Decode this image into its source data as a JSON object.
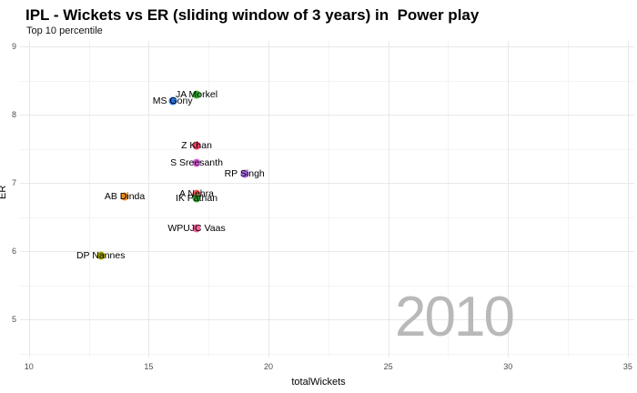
{
  "header": {
    "title": "IPL - Wickets vs ER (sliding window of 3 years) in  Power play",
    "subtitle": "Top 10 percentile"
  },
  "watermark": "2010",
  "chart_data": {
    "type": "scatter",
    "title": "IPL - Wickets vs ER (sliding window of 3 years) in  Power play",
    "subtitle": "Top 10 percentile",
    "xlabel": "totalWickets",
    "ylabel": "ER",
    "xlim": [
      9.63,
      35.27
    ],
    "ylim": [
      4.44,
      9.08
    ],
    "x_ticks": [
      10,
      15,
      20,
      25,
      30,
      35
    ],
    "y_ticks": [
      9,
      8,
      7,
      6,
      5
    ],
    "x_minor_ticks": [
      12.5,
      17.5,
      22.5,
      27.5,
      32.5
    ],
    "y_minor_ticks": [
      8.5,
      7.5,
      6.5,
      5.5,
      4.5
    ],
    "grid": "major-and-minor",
    "legend": "none",
    "annotation_year": "2010",
    "colors": {
      "grid_major": "#e8e8e8",
      "grid_minor": "#f4f4f4",
      "watermark": "#b9b9b9",
      "tick_text": "#4d4d4d"
    },
    "points": [
      {
        "label": "JA Morkel",
        "x": 17,
        "y": 8.3,
        "color": "#33b433"
      },
      {
        "label": "MS Gony",
        "x": 16,
        "y": 8.2,
        "color": "#2878e8"
      },
      {
        "label": "Z Khan",
        "x": 17,
        "y": 7.55,
        "color": "#e83e5f"
      },
      {
        "label": "S Sreesanth",
        "x": 17,
        "y": 7.29,
        "color": "#dd63e0"
      },
      {
        "label": "RP Singh",
        "x": 19,
        "y": 7.14,
        "color": "#a965e6"
      },
      {
        "label": "AB Dinda",
        "x": 14,
        "y": 6.8,
        "color": "#e88c28"
      },
      {
        "label": "A Nehra",
        "x": 17,
        "y": 6.84,
        "color": "#f25c5c"
      },
      {
        "label": "IK Pathan",
        "x": 17,
        "y": 6.78,
        "color": "#35a835"
      },
      {
        "label": "WPUJC Vaas",
        "x": 17,
        "y": 6.33,
        "color": "#f7629e"
      },
      {
        "label": "DP Nannes",
        "x": 13,
        "y": 5.93,
        "color": "#a3a500"
      }
    ]
  }
}
